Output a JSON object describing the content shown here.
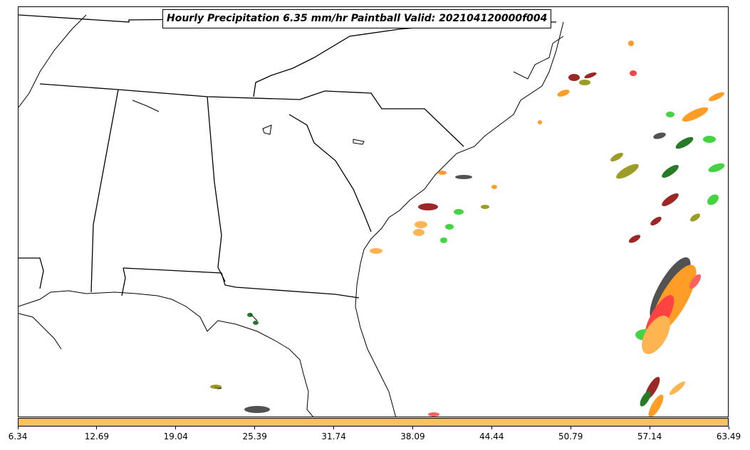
{
  "title": "Hourly Precipitation 6.35 mm/hr Paintball Valid: 202104120000f004",
  "colorbar": {
    "color": "#ffc060",
    "ticks": [
      "6.34",
      "12.69",
      "19.04",
      "25.39",
      "31.74",
      "38.09",
      "44.44",
      "50.79",
      "57.14",
      "63.49"
    ]
  },
  "paintball_colors": [
    "#ff8c00",
    "#ffa733",
    "#ff2020",
    "#8b0000",
    "#22cc22",
    "#006400",
    "#8b8b00",
    "#333333",
    "#ff4444"
  ]
}
